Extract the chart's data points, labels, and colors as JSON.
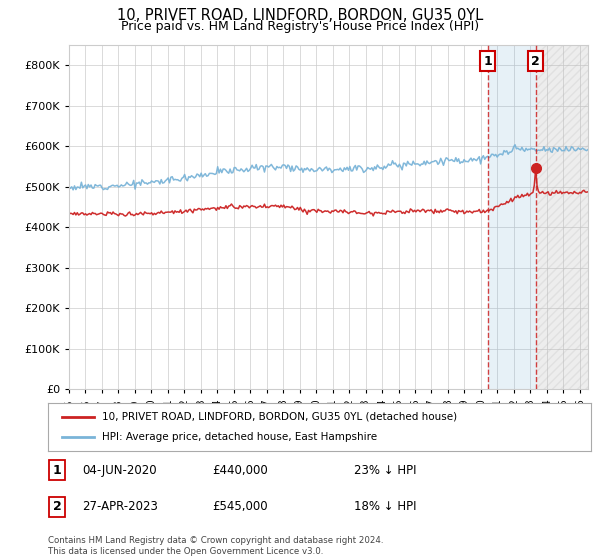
{
  "title": "10, PRIVET ROAD, LINDFORD, BORDON, GU35 0YL",
  "subtitle": "Price paid vs. HM Land Registry's House Price Index (HPI)",
  "ylim": [
    0,
    850000
  ],
  "yticks": [
    0,
    100000,
    200000,
    300000,
    400000,
    500000,
    600000,
    700000,
    800000
  ],
  "ytick_labels": [
    "£0",
    "£100K",
    "£200K",
    "£300K",
    "£400K",
    "£500K",
    "£600K",
    "£700K",
    "£800K"
  ],
  "hpi_color": "#7ab4d8",
  "price_color": "#cc2222",
  "sale1_date": "04-JUN-2020",
  "sale1_price": 440000,
  "sale1_label": "23% ↓ HPI",
  "sale1_x": 2020.42,
  "sale2_date": "27-APR-2023",
  "sale2_price": 545000,
  "sale2_label": "18% ↓ HPI",
  "sale2_x": 2023.32,
  "legend_line1": "10, PRIVET ROAD, LINDFORD, BORDON, GU35 0YL (detached house)",
  "legend_line2": "HPI: Average price, detached house, East Hampshire",
  "footnote": "Contains HM Land Registry data © Crown copyright and database right 2024.\nThis data is licensed under the Open Government Licence v3.0.",
  "background_color": "#ffffff",
  "grid_color": "#cccccc",
  "title_fontsize": 10.5,
  "subtitle_fontsize": 9
}
